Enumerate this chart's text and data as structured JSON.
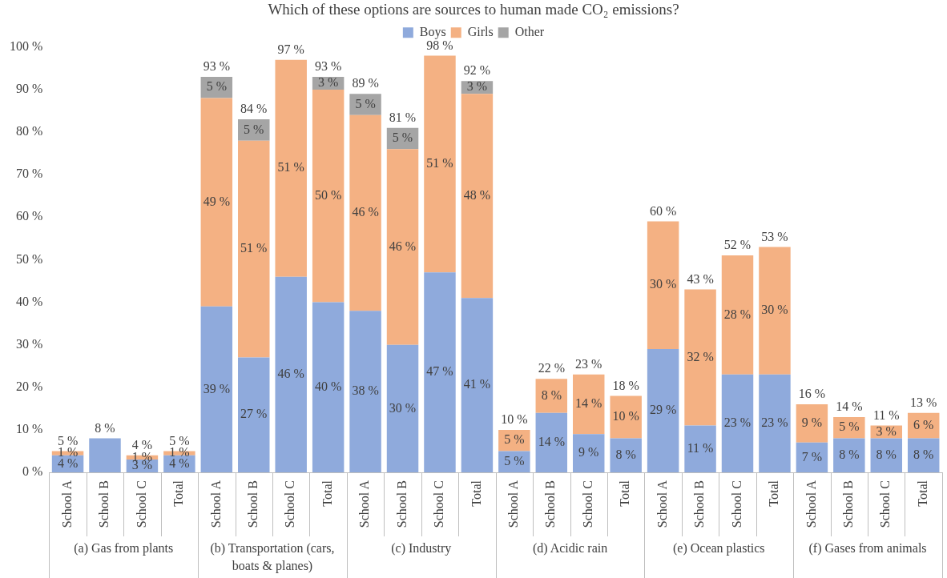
{
  "chart_data": {
    "type": "bar",
    "stacked": true,
    "title": "Which of these options are sources to human made CO₂ emissions?",
    "categories": [
      "School A",
      "School B",
      "School C",
      "Total",
      "School A",
      "School B",
      "School C",
      "Total",
      "School A",
      "School B",
      "School C",
      "Total",
      "School A",
      "School B",
      "School C",
      "Total",
      "School A",
      "School B",
      "School C",
      "Total",
      "School A",
      "School B",
      "School C",
      "Total"
    ],
    "series": [
      {
        "name": "Boys",
        "color": "#8faadc",
        "values": [
          4,
          8,
          3,
          4,
          39,
          27,
          46,
          40,
          38,
          30,
          47,
          41,
          5,
          14,
          9,
          8,
          29,
          11,
          23,
          23,
          7,
          8,
          8,
          8
        ],
        "value_labels": [
          "4 %",
          null,
          "3 %",
          "4 %",
          "39 %",
          "27 %",
          "46 %",
          "40 %",
          "38 %",
          "30 %",
          "47 %",
          "41 %",
          "5 %",
          "14 %",
          "9 %",
          "8 %",
          "29 %",
          "11 %",
          "23 %",
          "23 %",
          "7 %",
          "8 %",
          "8 %",
          "8 %"
        ]
      },
      {
        "name": "Girls",
        "color": "#f4b183",
        "values": [
          1,
          null,
          1,
          1,
          49,
          51,
          51,
          50,
          46,
          46,
          51,
          48,
          5,
          8,
          14,
          10,
          30,
          32,
          28,
          30,
          9,
          5,
          3,
          6
        ],
        "value_labels": [
          "1 %",
          null,
          "1 %",
          "1 %",
          "49 %",
          "51 %",
          "51 %",
          "50 %",
          "46 %",
          "46 %",
          "51 %",
          "48 %",
          "5 %",
          "8 %",
          "14 %",
          "10 %",
          "30 %",
          "32 %",
          "28 %",
          "30 %",
          "9 %",
          "5 %",
          "3 %",
          "6 %"
        ]
      },
      {
        "name": "Other",
        "color": "#a5a5a5",
        "values": [
          null,
          null,
          null,
          null,
          5,
          5,
          null,
          3,
          5,
          5,
          null,
          3,
          null,
          null,
          null,
          null,
          null,
          null,
          null,
          null,
          null,
          null,
          null,
          null
        ],
        "value_labels": [
          null,
          null,
          null,
          null,
          "5 %",
          "5 %",
          null,
          "3 %",
          "5 %",
          "5 %",
          null,
          "3 %",
          null,
          null,
          null,
          null,
          null,
          null,
          null,
          null,
          null,
          null,
          null,
          null
        ]
      }
    ],
    "totals": [
      "5 %",
      "8 %",
      "4 %",
      "5 %",
      "93 %",
      "84 %",
      "97 %",
      "93 %",
      "89 %",
      "81 %",
      "98 %",
      "92 %",
      "10 %",
      "22 %",
      "23 %",
      "18 %",
      "60 %",
      "43 %",
      "52 %",
      "53 %",
      "16 %",
      "14 %",
      "11 %",
      "13 %"
    ],
    "annotations": [
      "(a) Gas from plants",
      "(b) Transportation (cars, boats & planes)",
      "(c) Industry",
      "(d) Acidic rain",
      "(e) Ocean plastics",
      "(f) Gases from animals"
    ],
    "ylim": [
      0,
      100
    ],
    "yticks": [
      {
        "value": 0,
        "label": "0 %"
      },
      {
        "value": 10,
        "label": "10 %"
      },
      {
        "value": 20,
        "label": "20 %"
      },
      {
        "value": 30,
        "label": "30 %"
      },
      {
        "value": 40,
        "label": "40 %"
      },
      {
        "value": 50,
        "label": "50 %"
      },
      {
        "value": 60,
        "label": "60 %"
      },
      {
        "value": 70,
        "label": "70 %"
      },
      {
        "value": 80,
        "label": "80 %"
      },
      {
        "value": 90,
        "label": "90 %"
      },
      {
        "value": 100,
        "label": "100 %"
      }
    ],
    "grid": false,
    "legend": "top"
  }
}
